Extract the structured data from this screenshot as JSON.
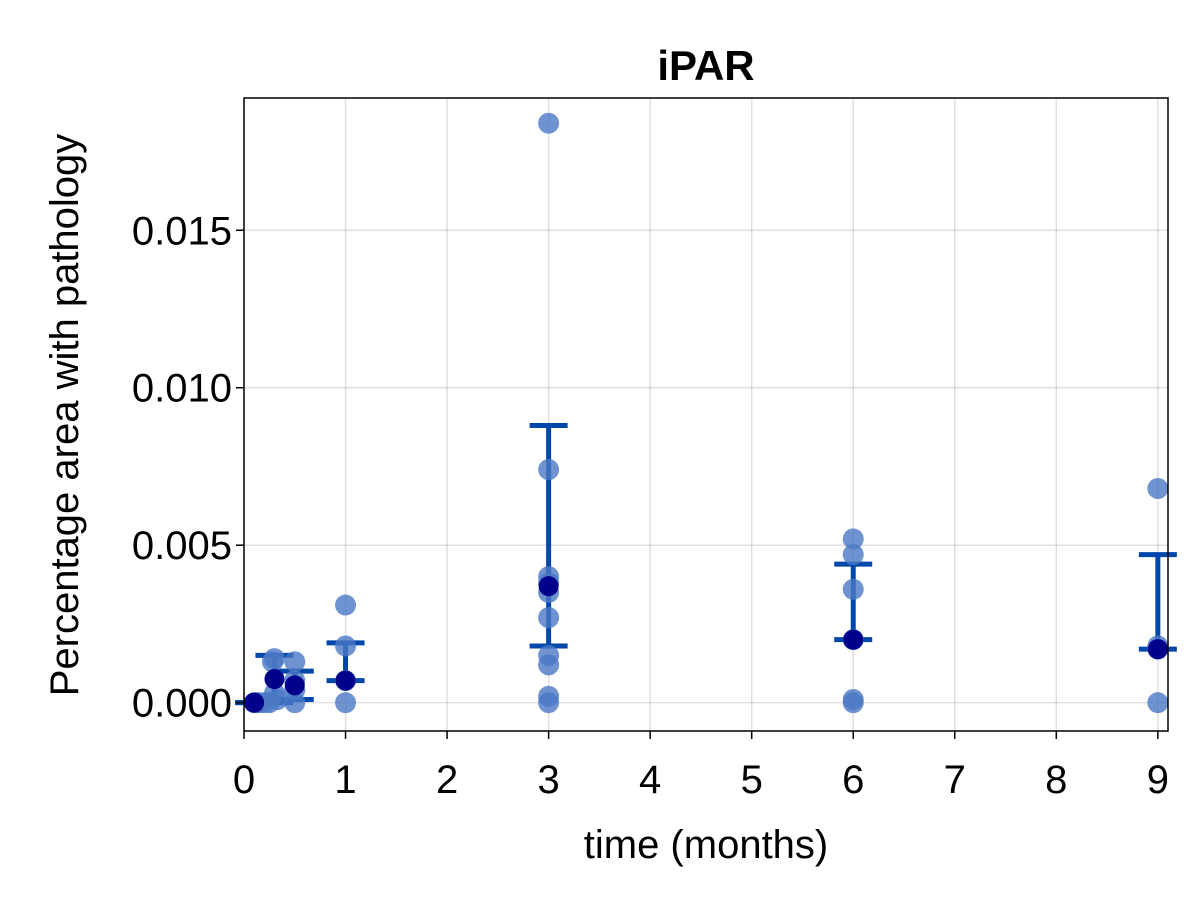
{
  "chart_data": {
    "type": "scatter",
    "title": "iPAR",
    "xlabel": "time (months)",
    "ylabel": "Percentage area with pathology",
    "xlim": [
      0,
      9.1
    ],
    "ylim": [
      -0.0009,
      0.0192
    ],
    "x_ticks": [
      0,
      1,
      2,
      3,
      4,
      5,
      6,
      7,
      8,
      9
    ],
    "x_tick_labels": [
      "0",
      "1",
      "2",
      "3",
      "4",
      "5",
      "6",
      "7",
      "8",
      "9"
    ],
    "y_ticks": [
      0.0,
      0.005,
      0.01,
      0.015
    ],
    "y_tick_labels": [
      "0.000",
      "0.005",
      "0.010",
      "0.015"
    ],
    "grid": true,
    "colors": {
      "points": "#4a78c4",
      "mean": "#00008b",
      "errorbar": "#0047ab"
    },
    "points": [
      {
        "x": 0.1,
        "y": 0.0
      },
      {
        "x": 0.12,
        "y": 0.0
      },
      {
        "x": 0.15,
        "y": 0.0
      },
      {
        "x": 0.2,
        "y": 0.0
      },
      {
        "x": 0.25,
        "y": 0.0
      },
      {
        "x": 0.28,
        "y": 0.0013
      },
      {
        "x": 0.3,
        "y": 0.0014
      },
      {
        "x": 0.33,
        "y": 0.0001
      },
      {
        "x": 0.3,
        "y": 0.0003
      },
      {
        "x": 0.5,
        "y": 0.0013
      },
      {
        "x": 0.5,
        "y": 0.0007
      },
      {
        "x": 0.5,
        "y": 0.0004
      },
      {
        "x": 0.5,
        "y": 0.0
      },
      {
        "x": 1,
        "y": 0.0031
      },
      {
        "x": 1,
        "y": 0.0018
      },
      {
        "x": 1,
        "y": 0.0007
      },
      {
        "x": 1,
        "y": 0.0
      },
      {
        "x": 3,
        "y": 0.0184
      },
      {
        "x": 3,
        "y": 0.0074
      },
      {
        "x": 3,
        "y": 0.004
      },
      {
        "x": 3,
        "y": 0.0038
      },
      {
        "x": 3,
        "y": 0.0035
      },
      {
        "x": 3,
        "y": 0.0027
      },
      {
        "x": 3,
        "y": 0.0015
      },
      {
        "x": 3,
        "y": 0.0012
      },
      {
        "x": 3,
        "y": 0.0002
      },
      {
        "x": 3,
        "y": 0.0
      },
      {
        "x": 6,
        "y": 0.0052
      },
      {
        "x": 6,
        "y": 0.0047
      },
      {
        "x": 6,
        "y": 0.0036
      },
      {
        "x": 6,
        "y": 0.002
      },
      {
        "x": 6,
        "y": 0.0001
      },
      {
        "x": 6,
        "y": 0.0
      },
      {
        "x": 9,
        "y": 0.0068
      },
      {
        "x": 9,
        "y": 0.0018
      },
      {
        "x": 9,
        "y": 0.0017
      },
      {
        "x": 9,
        "y": 0.0
      }
    ],
    "summary": [
      {
        "x": 0.1,
        "mean": 0.0,
        "lower": 0.0,
        "upper": 0.0
      },
      {
        "x": 0.3,
        "mean": 0.00075,
        "lower": 0.0,
        "upper": 0.0015
      },
      {
        "x": 0.5,
        "mean": 0.00055,
        "lower": 0.0001,
        "upper": 0.001
      },
      {
        "x": 1,
        "mean": 0.0007,
        "lower": 0.0007,
        "upper": 0.0019
      },
      {
        "x": 3,
        "mean": 0.0037,
        "lower": 0.0018,
        "upper": 0.0088
      },
      {
        "x": 6,
        "mean": 0.002,
        "lower": 0.002,
        "upper": 0.0044
      },
      {
        "x": 9,
        "mean": 0.0017,
        "lower": 0.0017,
        "upper": 0.0047
      }
    ]
  }
}
